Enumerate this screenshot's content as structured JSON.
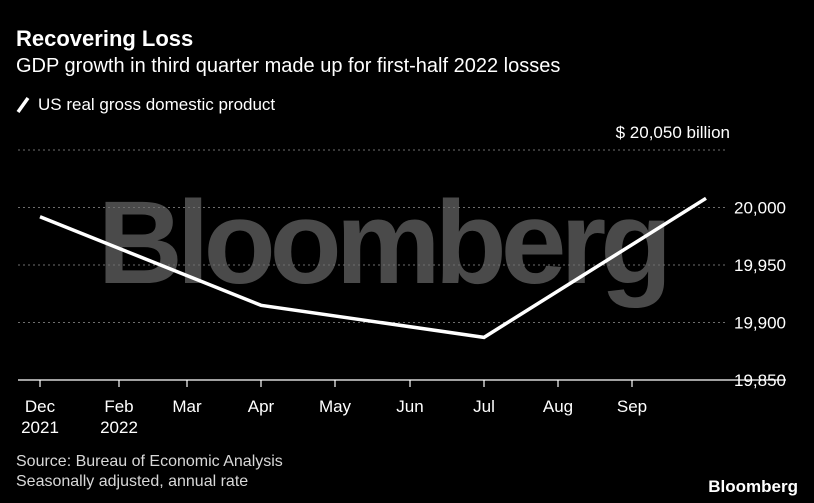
{
  "header": {
    "title": "Recovering Loss",
    "subtitle": "GDP growth in third quarter made up for first-half 2022 losses"
  },
  "legend": {
    "label": "US real gross domestic product"
  },
  "footer": {
    "source": "Source: Bureau of Economic Analysis",
    "note": "Seasonally adjusted, annual rate"
  },
  "brand": {
    "logo_text": "Bloomberg",
    "watermark_text": "Bloomberg"
  },
  "colors": {
    "background": "#000000",
    "line": "#ffffff",
    "grid": "#6e6e6e",
    "axis_text": "#ffffff",
    "watermark": "#4a4a4a"
  },
  "chart_data": {
    "type": "line",
    "unit_label": "$ 20,050 billion",
    "x_ticks": [
      {
        "label": "Dec",
        "sublabel": "2021"
      },
      {
        "label": "Feb",
        "sublabel": "2022"
      },
      {
        "label": "Mar",
        "sublabel": ""
      },
      {
        "label": "Apr",
        "sublabel": ""
      },
      {
        "label": "May",
        "sublabel": ""
      },
      {
        "label": "Jun",
        "sublabel": ""
      },
      {
        "label": "Jul",
        "sublabel": ""
      },
      {
        "label": "Aug",
        "sublabel": ""
      },
      {
        "label": "Sep",
        "sublabel": ""
      }
    ],
    "y_ticks": [
      "20,000",
      "19,950",
      "19,900",
      "19,850"
    ],
    "y_tick_values": [
      20000,
      19950,
      19900,
      19850
    ],
    "ylim": [
      19850,
      20050
    ],
    "series": [
      {
        "x": [
          "2021-Q4",
          "2022-Q1",
          "2022-Q2",
          "2022-Q3"
        ],
        "y": [
          19992,
          19915,
          19887,
          20008
        ]
      }
    ],
    "grid": true,
    "legend_position": "top-left"
  }
}
